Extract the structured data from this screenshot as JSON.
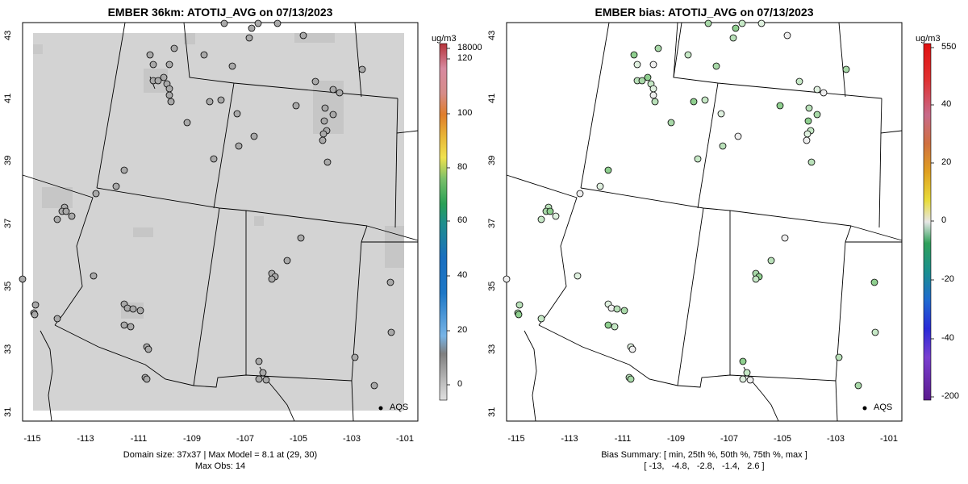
{
  "left_panel": {
    "title": "EMBER 36km: ATOTIJ_AVG on 07/13/2023",
    "footer_line1": "Domain size: 37x37 | Max Model = 8.1 at (29, 30)",
    "footer_line2": "Max Obs: 14",
    "legend_label": "AQS",
    "colorbar_unit": "ug/m3",
    "colorbar_ticks": [
      "18000",
      "120",
      "100",
      "80",
      "60",
      "40",
      "20",
      "0"
    ],
    "colors": {
      "background_fill": "#d3d3d3",
      "marker_fill": "#a9a9a9"
    }
  },
  "right_panel": {
    "title": "EMBER bias: ATOTIJ_AVG on 07/13/2023",
    "footer_line1": "Bias Summary: [ min, 25th %, 50th %, 75th %, max ]",
    "footer_line2": "[ -13,   -4.8,   -2.8,   -1.4,   2.6 ]",
    "legend_label": "AQS",
    "colorbar_unit": "ug/m3",
    "colorbar_ticks": [
      "550",
      "40",
      "20",
      "0",
      "-20",
      "-40",
      "-200"
    ],
    "colors": {
      "marker_default": "#ccebcc",
      "marker_neutral": "#eeeeee"
    }
  },
  "axes": {
    "x_ticks": [
      "-115",
      "-113",
      "-111",
      "-109",
      "-107",
      "-105",
      "-103",
      "-101"
    ],
    "y_ticks": [
      "31",
      "33",
      "35",
      "37",
      "39",
      "41",
      "43"
    ]
  }
}
